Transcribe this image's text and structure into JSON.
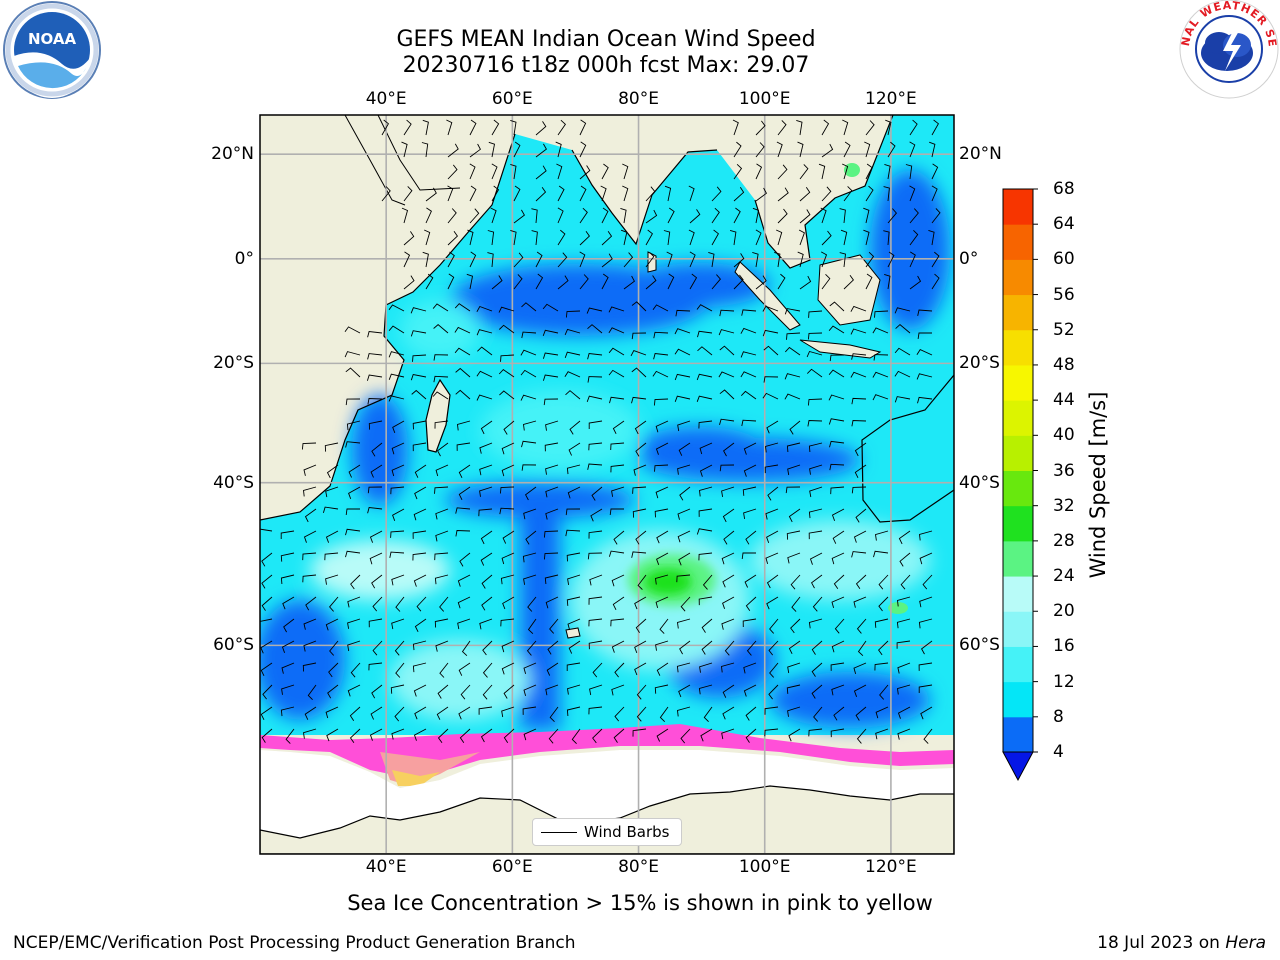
{
  "title": {
    "line1": "GEFS MEAN Indian Ocean Wind Speed",
    "line2": "20230716 t18z 000h fcst   Max: 29.07"
  },
  "map": {
    "lon_range": [
      20,
      130
    ],
    "lat_range": [
      -75,
      27
    ],
    "lon_ticks": [
      40,
      60,
      80,
      100,
      120
    ],
    "lon_tick_labels": [
      "40°E",
      "60°E",
      "80°E",
      "100°E",
      "120°E"
    ],
    "lat_ticks": [
      20,
      0,
      -20,
      -40,
      -60
    ],
    "lat_tick_labels": [
      "20°N",
      "0°",
      "20°S",
      "40°S",
      "60°S"
    ],
    "grid": true,
    "land_color": "#efefdc",
    "ocean_base_color": "#1ee8f7"
  },
  "colorbar": {
    "label": "Wind Speed [m/s]",
    "levels": [
      4,
      8,
      12,
      16,
      20,
      24,
      28,
      32,
      36,
      40,
      44,
      48,
      52,
      56,
      60,
      64,
      68
    ],
    "level_labels": [
      "4",
      "8",
      "12",
      "16",
      "20",
      "24",
      "28",
      "32",
      "36",
      "40",
      "44",
      "48",
      "52",
      "56",
      "60",
      "64",
      "68"
    ],
    "colors": [
      "#0b6cf7",
      "#04e6f7",
      "#45f2f7",
      "#8af6f7",
      "#b8fbf8",
      "#5bf383",
      "#1fe11f",
      "#68e80e",
      "#b8f000",
      "#dcf400",
      "#f7f700",
      "#f7df00",
      "#f7b400",
      "#f78a00",
      "#f76400",
      "#f73500"
    ],
    "under_color": "#0516e6"
  },
  "legend": {
    "label": "Wind Barbs"
  },
  "caption": "Sea Ice Concentration > 15% is shown in pink to yellow",
  "footer": {
    "left": "NCEP/EMC/Verification Post Processing Product Generation Branch",
    "right_prefix": "18 Jul 2023 on ",
    "right_host": "Hera"
  },
  "logos": {
    "left": "NOAA",
    "right": "NATIONAL WEATHER SERVICE"
  }
}
